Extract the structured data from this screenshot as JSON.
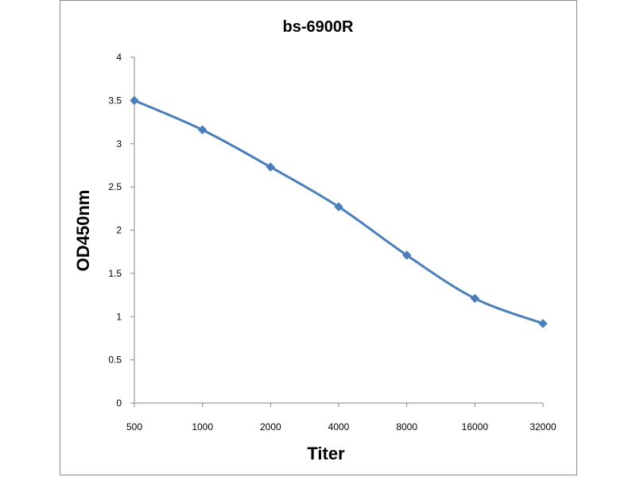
{
  "chart_data": {
    "type": "line",
    "title": "bs-6900R",
    "xlabel": "Titer",
    "ylabel": "OD450nm",
    "categories": [
      "500",
      "1000",
      "2000",
      "4000",
      "8000",
      "16000",
      "32000"
    ],
    "series": [
      {
        "values": [
          3.5,
          3.16,
          2.73,
          2.27,
          1.71,
          1.21,
          0.92
        ],
        "color": "#4a7ebb",
        "marker": "diamond",
        "smooth": true
      }
    ],
    "y_ticks": [
      "0",
      "0.5",
      "1",
      "1.5",
      "2",
      "2.5",
      "3",
      "3.5",
      "4"
    ],
    "ylim": [
      0,
      4
    ],
    "grid": false,
    "legend": "none"
  }
}
